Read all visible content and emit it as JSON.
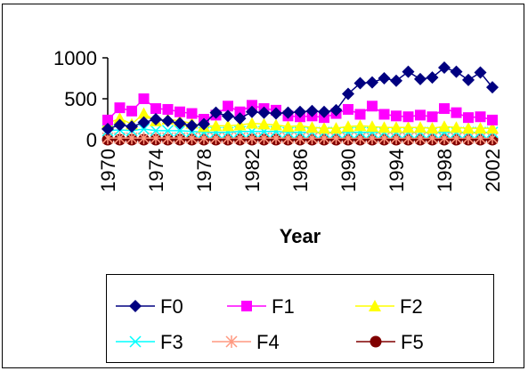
{
  "chart_data": {
    "type": "line",
    "title": "",
    "xlabel": "Year",
    "ylabel": "",
    "ylim": [
      0,
      1000
    ],
    "yticks": [
      0,
      500,
      1000
    ],
    "xlim": [
      1970,
      2002
    ],
    "xtick_labels": [
      "1970",
      "1974",
      "1978",
      "1982",
      "1986",
      "1990",
      "1994",
      "1998",
      "2002"
    ],
    "x": [
      1970,
      1971,
      1972,
      1973,
      1974,
      1975,
      1976,
      1977,
      1978,
      1979,
      1980,
      1981,
      1982,
      1983,
      1984,
      1985,
      1986,
      1987,
      1988,
      1989,
      1990,
      1991,
      1992,
      1993,
      1994,
      1995,
      1996,
      1997,
      1998,
      1999,
      2000,
      2001,
      2002
    ],
    "legend_position": "bottom",
    "grid": false,
    "series": [
      {
        "name": "F0",
        "color": "#000080",
        "marker": "diamond",
        "values": [
          130,
          180,
          160,
          210,
          250,
          230,
          200,
          170,
          190,
          330,
          290,
          260,
          340,
          330,
          320,
          330,
          340,
          350,
          340,
          360,
          560,
          690,
          700,
          750,
          720,
          830,
          740,
          760,
          880,
          830,
          730,
          820,
          640
        ]
      },
      {
        "name": "F1",
        "color": "#FF00FF",
        "marker": "square",
        "values": [
          240,
          390,
          350,
          500,
          380,
          370,
          340,
          320,
          250,
          300,
          410,
          340,
          420,
          380,
          360,
          290,
          280,
          290,
          270,
          320,
          370,
          310,
          410,
          310,
          290,
          280,
          300,
          280,
          380,
          330,
          270,
          280,
          240
        ]
      },
      {
        "name": "F2",
        "color": "#FFFF00",
        "marker": "triangle",
        "values": [
          200,
          260,
          190,
          320,
          230,
          250,
          230,
          200,
          160,
          170,
          170,
          180,
          200,
          190,
          180,
          160,
          170,
          150,
          140,
          140,
          160,
          170,
          160,
          150,
          150,
          150,
          150,
          140,
          160,
          150,
          140,
          140,
          140
        ]
      },
      {
        "name": "F3",
        "color": "#00FFFF",
        "marker": "x",
        "values": [
          110,
          120,
          110,
          130,
          110,
          110,
          110,
          100,
          90,
          90,
          90,
          100,
          100,
          100,
          100,
          90,
          90,
          90,
          90,
          90,
          90,
          90,
          90,
          90,
          90,
          90,
          90,
          90,
          90,
          90,
          90,
          90,
          90
        ]
      },
      {
        "name": "F4",
        "color": "#FF9980",
        "marker": "star",
        "values": [
          20,
          20,
          20,
          20,
          20,
          20,
          20,
          20,
          20,
          20,
          20,
          20,
          20,
          20,
          20,
          20,
          20,
          20,
          20,
          20,
          20,
          20,
          20,
          20,
          20,
          20,
          20,
          20,
          20,
          20,
          20,
          20,
          20
        ]
      },
      {
        "name": "F5",
        "color": "#800000",
        "marker": "circle",
        "values": [
          0,
          0,
          0,
          0,
          0,
          0,
          0,
          0,
          0,
          0,
          0,
          0,
          0,
          0,
          0,
          0,
          0,
          0,
          0,
          0,
          0,
          0,
          0,
          0,
          0,
          0,
          0,
          0,
          0,
          0,
          0,
          0,
          0
        ]
      }
    ]
  }
}
